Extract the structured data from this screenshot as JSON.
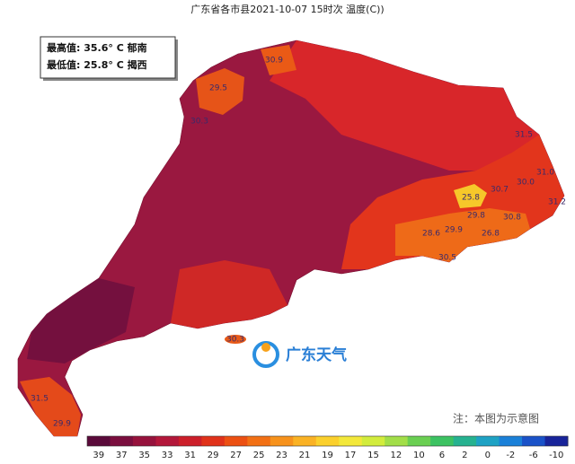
{
  "header": {
    "title": "广东省各市县2021-10-07 15时次 温度(C))"
  },
  "extremes": {
    "max": "最高值: 35.6° C 郁南",
    "min": "最低值: 25.8° C 揭西"
  },
  "map_labels": [
    "30.9",
    "29.5",
    "30.3",
    "31.5",
    "31.0",
    "30.0",
    "30.7",
    "31.2",
    "25.8",
    "29.8",
    "30.8",
    "28.6",
    "29.9",
    "26.8",
    "30.5",
    "30.3",
    "31.5",
    "29.9"
  ],
  "brand": "广东天气",
  "note": "注：本图为示意图",
  "colorbar": {
    "ticks": [
      39,
      37,
      35,
      33,
      31,
      29,
      27,
      25,
      23,
      21,
      19,
      17,
      15,
      12,
      10,
      6,
      2,
      0,
      -2,
      -6,
      -10
    ],
    "colors": [
      "#5a0a3a",
      "#7a0e3e",
      "#96123c",
      "#b3173a",
      "#cc1f2a",
      "#e0321a",
      "#ec5012",
      "#f27014",
      "#f7921c",
      "#fab224",
      "#fbd02c",
      "#f3e83a",
      "#d2ec3c",
      "#a2de48",
      "#6acf52",
      "#3cc262",
      "#26b290",
      "#1ea2c4",
      "#1a80d8",
      "#1a52c8",
      "#18249a"
    ]
  }
}
